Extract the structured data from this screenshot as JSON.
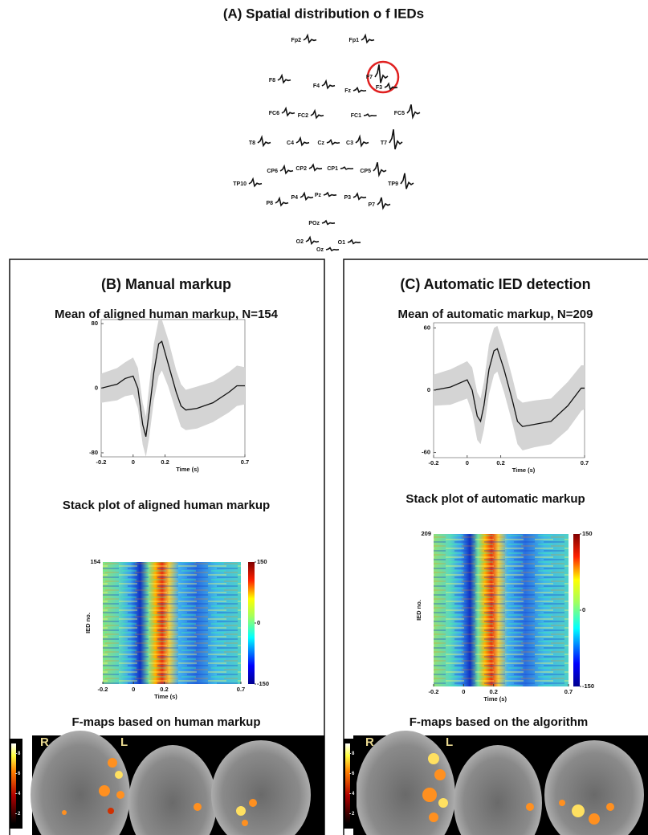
{
  "panel_a": {
    "title": "(A) Spatial distribution o f IEDs",
    "electrodes": [
      "Fp2",
      "Fp1",
      "F8",
      "F4",
      "Fz",
      "F3",
      "F7",
      "FC6",
      "FC2",
      "FC1",
      "FC5",
      "T8",
      "C4",
      "Cz",
      "C3",
      "T7",
      "CP6",
      "CP2",
      "CP1",
      "CP5",
      "TP10",
      "TP9",
      "P8",
      "P4",
      "Pz",
      "P3",
      "P7",
      "POz",
      "O2",
      "Oz",
      "O1"
    ]
  },
  "panels": [
    {
      "heading": "(B) Manual markup",
      "fmap_title": "F-maps based on human markup",
      "fmap_labels": [
        "R",
        "L"
      ],
      "fmap_clim": [
        1,
        9
      ],
      "fmap_cticks": [
        8,
        6,
        4,
        2
      ]
    },
    {
      "heading": "(C) Automatic IED detection",
      "fmap_title": "F-maps based on the algorithm",
      "fmap_labels": [
        "R",
        "L"
      ],
      "fmap_clim": [
        1,
        9
      ],
      "fmap_cticks": [
        8,
        6,
        4,
        2
      ]
    }
  ],
  "chart_data": [
    {
      "type": "line",
      "title": "Mean of aligned human markup, N=154",
      "xlabel": "Time (s)",
      "color": "#111111",
      "band_color": "#d4d4d4",
      "x": [
        -0.2,
        -0.1,
        -0.05,
        0,
        0.03,
        0.06,
        0.08,
        0.1,
        0.13,
        0.16,
        0.18,
        0.22,
        0.27,
        0.3,
        0.33,
        0.4,
        0.5,
        0.6,
        0.65,
        0.7
      ],
      "values": [
        0,
        5,
        12,
        15,
        0,
        -45,
        -60,
        -30,
        20,
        55,
        58,
        30,
        -5,
        -22,
        -27,
        -25,
        -18,
        -5,
        3,
        3
      ],
      "band_lower": [
        -18,
        -15,
        -10,
        -8,
        -25,
        -70,
        -85,
        -62,
        -15,
        15,
        22,
        2,
        -30,
        -48,
        -52,
        -50,
        -42,
        -30,
        -22,
        -20
      ],
      "band_upper": [
        18,
        25,
        32,
        38,
        25,
        -18,
        -35,
        2,
        55,
        85,
        85,
        60,
        22,
        5,
        -2,
        2,
        8,
        20,
        28,
        26
      ],
      "xlim": [
        -0.2,
        0.7
      ],
      "ylim": [
        -85,
        85
      ],
      "xticks": [
        -0.2,
        0,
        0.2,
        0.7
      ],
      "yticks": [
        80,
        0,
        -80
      ]
    },
    {
      "type": "heatmap",
      "title": "Stack plot of aligned human markup",
      "xlabel": "Time (s)",
      "ylabel": "IED no.",
      "xlim": [
        -0.2,
        0.7
      ],
      "ylim": [
        0,
        154
      ],
      "xticks": [
        -0.2,
        0,
        0.2,
        0.7
      ],
      "yticks": [
        154
      ],
      "clim": [
        -150,
        150
      ],
      "cticks": [
        150,
        0,
        -150
      ]
    },
    {
      "type": "line",
      "title": "Mean of automatic markup, N=209",
      "xlabel": "Time (s)",
      "color": "#111111",
      "band_color": "#d4d4d4",
      "x": [
        -0.2,
        -0.1,
        0,
        0.03,
        0.06,
        0.08,
        0.1,
        0.13,
        0.16,
        0.18,
        0.22,
        0.27,
        0.3,
        0.33,
        0.4,
        0.5,
        0.6,
        0.68,
        0.7
      ],
      "values": [
        0,
        3,
        10,
        0,
        -25,
        -30,
        -15,
        20,
        38,
        40,
        20,
        -10,
        -30,
        -35,
        -33,
        -30,
        -15,
        2,
        2
      ],
      "band_lower": [
        -15,
        -14,
        -8,
        -22,
        -48,
        -52,
        -38,
        -4,
        15,
        18,
        -2,
        -32,
        -52,
        -58,
        -55,
        -52,
        -38,
        -20,
        -18
      ],
      "band_upper": [
        15,
        20,
        28,
        22,
        -2,
        -8,
        8,
        44,
        60,
        62,
        42,
        12,
        -8,
        -12,
        -10,
        -8,
        8,
        24,
        24
      ],
      "xlim": [
        -0.2,
        0.7
      ],
      "ylim": [
        -65,
        65
      ],
      "xticks": [
        -0.2,
        0,
        0.2,
        0.7
      ],
      "yticks": [
        60,
        0,
        -60
      ]
    },
    {
      "type": "heatmap",
      "title": "Stack plot of automatic markup",
      "xlabel": "Time (s)",
      "ylabel": "IED no.",
      "xlim": [
        -0.2,
        0.7
      ],
      "ylim": [
        0,
        209
      ],
      "xticks": [
        -0.2,
        0,
        0.2,
        0.7
      ],
      "yticks": [
        209
      ],
      "clim": [
        -150,
        150
      ],
      "cticks": [
        150,
        0,
        -150
      ]
    }
  ]
}
